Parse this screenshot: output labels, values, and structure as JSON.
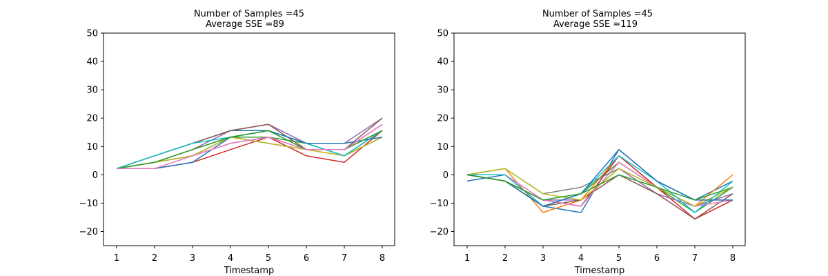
{
  "chart_data": [
    {
      "type": "line",
      "title_lines": [
        "Number of Samples =45",
        "Average SSE =89"
      ],
      "xlabel": "Timestamp",
      "ylabel": "",
      "x": [
        1,
        2,
        3,
        4,
        5,
        6,
        7,
        8
      ],
      "x_ticks": [
        "1",
        "2",
        "3",
        "4",
        "5",
        "6",
        "7",
        "8"
      ],
      "y_ticks": [
        "−20",
        "−10",
        "0",
        "10",
        "20",
        "30",
        "40",
        "50"
      ],
      "ylim": [
        -25,
        50
      ],
      "grid": false,
      "legend": "none",
      "series": [
        {
          "color": "#1f77b4",
          "values": [
            2.2,
            6.7,
            11.1,
            15.6,
            15.6,
            11.1,
            6.7,
            13.3
          ]
        },
        {
          "color": "#ff7f0e",
          "values": [
            2.2,
            4.4,
            6.7,
            13.3,
            11.1,
            8.9,
            6.7,
            15.6
          ]
        },
        {
          "color": "#2ca02c",
          "values": [
            2.2,
            4.4,
            8.9,
            13.3,
            13.3,
            11.1,
            6.7,
            15.6
          ]
        },
        {
          "color": "#d62728",
          "values": [
            2.2,
            2.2,
            4.4,
            8.9,
            13.3,
            6.7,
            4.4,
            15.6
          ]
        },
        {
          "color": "#9467bd",
          "values": [
            2.2,
            4.4,
            8.9,
            15.6,
            17.8,
            11.1,
            11.1,
            20.0
          ]
        },
        {
          "color": "#8c564b",
          "values": [
            2.2,
            6.7,
            11.1,
            15.6,
            17.8,
            8.9,
            8.9,
            20.0
          ]
        },
        {
          "color": "#e377c2",
          "values": [
            2.2,
            4.4,
            6.7,
            11.1,
            13.3,
            8.9,
            8.9,
            17.8
          ]
        },
        {
          "color": "#7f7f7f",
          "values": [
            2.2,
            4.4,
            6.7,
            13.3,
            11.1,
            8.9,
            8.9,
            15.6
          ]
        },
        {
          "color": "#bcbd22",
          "values": [
            2.2,
            4.4,
            6.7,
            13.3,
            11.1,
            8.9,
            6.7,
            13.3
          ]
        },
        {
          "color": "#17becf",
          "values": [
            2.2,
            6.7,
            11.1,
            13.3,
            15.6,
            11.1,
            6.7,
            15.6
          ]
        },
        {
          "color": "#1f77b4",
          "values": [
            2.2,
            2.2,
            4.4,
            13.3,
            15.6,
            11.1,
            11.1,
            13.3
          ]
        },
        {
          "color": "#2ca02c",
          "values": [
            2.2,
            4.4,
            8.9,
            13.3,
            15.6,
            8.9,
            8.9,
            15.6
          ]
        },
        {
          "color": "#e377c2",
          "values": [
            2.2,
            2.2,
            6.7,
            11.1,
            13.3,
            8.9,
            8.9,
            17.8
          ]
        }
      ]
    },
    {
      "type": "line",
      "title_lines": [
        "Number of Samples =45",
        "Average SSE =119"
      ],
      "xlabel": "Timestamp",
      "ylabel": "",
      "x": [
        1,
        2,
        3,
        4,
        5,
        6,
        7,
        8
      ],
      "x_ticks": [
        "1",
        "2",
        "3",
        "4",
        "5",
        "6",
        "7",
        "8"
      ],
      "y_ticks": [
        "−20",
        "−10",
        "0",
        "10",
        "20",
        "30",
        "40",
        "50"
      ],
      "ylim": [
        -25,
        50
      ],
      "grid": false,
      "legend": "none",
      "series": [
        {
          "color": "#1f77b4",
          "values": [
            -2.2,
            0.0,
            -11.1,
            -13.3,
            8.9,
            -2.2,
            -8.9,
            -2.2
          ]
        },
        {
          "color": "#ff7f0e",
          "values": [
            0.0,
            2.2,
            -13.3,
            -8.9,
            6.7,
            -4.4,
            -11.1,
            0.0
          ]
        },
        {
          "color": "#2ca02c",
          "values": [
            0.0,
            -2.2,
            -11.1,
            -6.7,
            4.4,
            -4.4,
            -13.3,
            -4.4
          ]
        },
        {
          "color": "#d62728",
          "values": [
            0.0,
            -2.2,
            -8.9,
            -11.1,
            6.7,
            -4.4,
            -15.6,
            -8.9
          ]
        },
        {
          "color": "#9467bd",
          "values": [
            0.0,
            -2.2,
            -8.9,
            -8.9,
            2.2,
            -6.7,
            -11.1,
            -6.7
          ]
        },
        {
          "color": "#8c564b",
          "values": [
            0.0,
            -2.2,
            -11.1,
            -8.9,
            0.0,
            -6.7,
            -15.6,
            -6.7
          ]
        },
        {
          "color": "#e377c2",
          "values": [
            0.0,
            0.0,
            -8.9,
            -11.1,
            4.4,
            -4.4,
            -11.1,
            -8.9
          ]
        },
        {
          "color": "#7f7f7f",
          "values": [
            0.0,
            2.2,
            -6.7,
            -4.4,
            2.2,
            -4.4,
            -11.1,
            -4.4
          ]
        },
        {
          "color": "#bcbd22",
          "values": [
            0.0,
            2.2,
            -6.7,
            -8.9,
            2.2,
            -4.4,
            -11.1,
            -4.4
          ]
        },
        {
          "color": "#17becf",
          "values": [
            0.0,
            0.0,
            -11.1,
            -6.7,
            6.7,
            -2.2,
            -13.3,
            -2.2
          ]
        },
        {
          "color": "#1f77b4",
          "values": [
            0.0,
            -2.2,
            -11.1,
            -6.7,
            8.9,
            -2.2,
            -8.9,
            -8.9
          ]
        },
        {
          "color": "#2ca02c",
          "values": [
            0.0,
            -2.2,
            -8.9,
            -6.7,
            0.0,
            -4.4,
            -8.9,
            -4.4
          ]
        }
      ]
    }
  ]
}
